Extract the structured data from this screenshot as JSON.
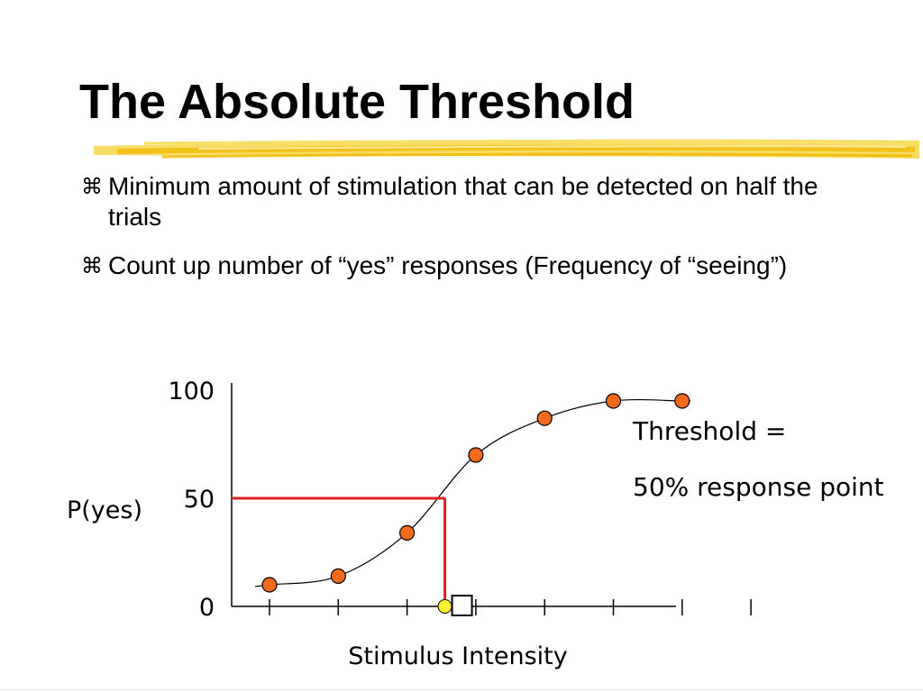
{
  "slide": {
    "title": "The Absolute Threshold",
    "bullets": [
      "Minimum amount of stimulation that can be detected on half the trials",
      "Count up number of “yes” responses (Frequency of “seeing”)"
    ],
    "bullet_icon": "place-of-interest-icon",
    "accent_color": "#f4c20d"
  },
  "chart_data": {
    "type": "line",
    "ylabel": "P(yes)",
    "xlabel": "Stimulus Intensity",
    "ylim": [
      0,
      100
    ],
    "yticks": [
      0,
      50,
      100
    ],
    "x_ticks": [
      1,
      2,
      3,
      4,
      5,
      6,
      7,
      8
    ],
    "series": [
      {
        "x": [
          1,
          2,
          3,
          4,
          5,
          6,
          7
        ],
        "values": [
          10,
          14,
          34,
          70,
          87,
          95,
          95
        ]
      }
    ],
    "threshold": {
      "x": 3.55,
      "y": 50,
      "line_color": "#e02020",
      "marker_color": "#ffee33"
    },
    "threshold_marker_icon": "square-outline-icon",
    "annotation": [
      "Threshold =",
      "50% response point"
    ],
    "marker_color": "#f26b1d",
    "grid": false
  }
}
